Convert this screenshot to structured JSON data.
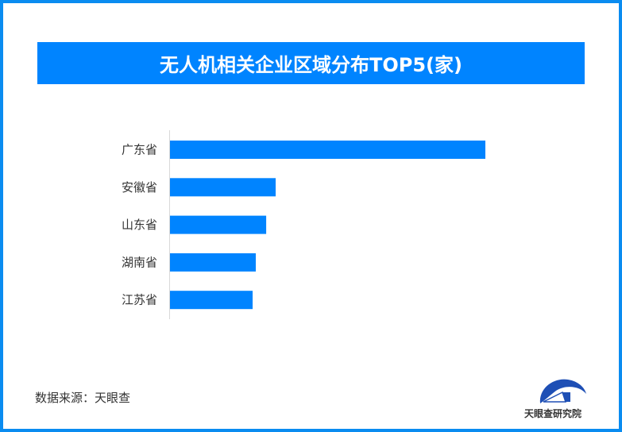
{
  "title": "无人机相关企业区域分布TOP5(家)",
  "source": "数据来源：天眼查",
  "logo_text": "天眼查研究院",
  "colors": {
    "bar": "#0084ff",
    "title_bg": "#0084ff",
    "frame": "#0a8cf0"
  },
  "chart_data": {
    "type": "bar",
    "orientation": "horizontal",
    "title": "无人机相关企业区域分布TOP5(家)",
    "categories": [
      "广东省",
      "安徽省",
      "山东省",
      "湖南省",
      "江苏省"
    ],
    "values": [
      100,
      33.5,
      30.5,
      27.2,
      26.2
    ],
    "value_note": "relative lengths; no axis or data labels shown",
    "grid": false,
    "legend": "none"
  }
}
